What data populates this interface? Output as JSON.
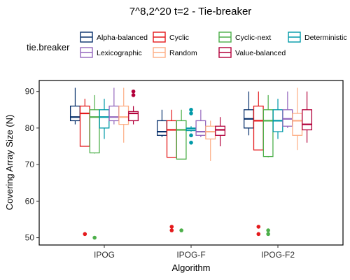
{
  "chart_data": {
    "type": "boxplot",
    "title": "7^8,2^20 t=2 - Tie-breaker",
    "xlabel": "Algorithm",
    "ylabel": "Covering Array Size (N)",
    "ylim": [
      48,
      93
    ],
    "yticks": [
      50,
      60,
      70,
      80,
      90
    ],
    "grid": false,
    "legend": {
      "title": "tie.breaker",
      "position": "top",
      "entries": [
        {
          "name": "Alpha-balanced",
          "color": "#08306B"
        },
        {
          "name": "Cyclic",
          "color": "#E41A1C"
        },
        {
          "name": "Cyclic-next",
          "color": "#4DAF4A"
        },
        {
          "name": "Deterministic",
          "color": "#0099A8"
        },
        {
          "name": "Lexicographic",
          "color": "#9467BD"
        },
        {
          "name": "Random",
          "color": "#FDAE85"
        },
        {
          "name": "Value-balanced",
          "color": "#B2003A"
        }
      ]
    },
    "categories": [
      "IPOG",
      "IPOG-F",
      "IPOG-F2"
    ],
    "boxes": [
      [
        {
          "whisker_low": 81,
          "q1": 82,
          "median": 83,
          "q3": 86,
          "whisker_high": 91,
          "outliers": []
        },
        {
          "whisker_low": 75,
          "q1": 75,
          "median": 84,
          "q3": 86,
          "whisker_high": 88,
          "outliers": [
            51
          ]
        },
        {
          "whisker_low": 73,
          "q1": 73.2,
          "median": 83,
          "q3": 85,
          "whisker_high": 89,
          "outliers": [
            50
          ]
        },
        {
          "whisker_low": 77,
          "q1": 80,
          "median": 83,
          "q3": 85,
          "whisker_high": 88,
          "outliers": []
        },
        {
          "whisker_low": 81,
          "q1": 82,
          "median": 83,
          "q3": 86,
          "whisker_high": 91,
          "outliers": []
        },
        {
          "whisker_low": 76,
          "q1": 81,
          "median": 83,
          "q3": 86,
          "whisker_high": 91,
          "outliers": []
        },
        {
          "whisker_low": 81,
          "q1": 82,
          "median": 84,
          "q3": 84.5,
          "whisker_high": 86,
          "outliers": [
            89,
            90
          ]
        }
      ],
      [
        {
          "whisker_low": 77.5,
          "q1": 78,
          "median": 79,
          "q3": 82,
          "whisker_high": 85,
          "outliers": []
        },
        {
          "whisker_low": 72,
          "q1": 72,
          "median": 79.5,
          "q3": 82,
          "whisker_high": 85,
          "outliers": [
            52,
            53
          ]
        },
        {
          "whisker_low": 71.5,
          "q1": 71.5,
          "median": 79.5,
          "q3": 82,
          "whisker_high": 85,
          "outliers": [
            52
          ]
        },
        {
          "whisker_low": 79,
          "q1": 79.3,
          "median": 79.8,
          "q3": 80,
          "whisker_high": 80.5,
          "outliers": [
            76,
            78,
            84,
            85
          ]
        },
        {
          "whisker_low": 77.5,
          "q1": 78,
          "median": 79,
          "q3": 82,
          "whisker_high": 85,
          "outliers": []
        },
        {
          "whisker_low": 71,
          "q1": 77,
          "median": 79,
          "q3": 80.5,
          "whisker_high": 82,
          "outliers": []
        },
        {
          "whisker_low": 75,
          "q1": 78,
          "median": 79.5,
          "q3": 80.5,
          "whisker_high": 83,
          "outliers": []
        }
      ],
      [
        {
          "whisker_low": 78,
          "q1": 80,
          "median": 82.5,
          "q3": 85,
          "whisker_high": 90,
          "outliers": []
        },
        {
          "whisker_low": 74,
          "q1": 74,
          "median": 82,
          "q3": 86,
          "whisker_high": 90,
          "outliers": [
            51,
            53
          ]
        },
        {
          "whisker_low": 72,
          "q1": 72.2,
          "median": 82,
          "q3": 85,
          "whisker_high": 89,
          "outliers": [
            51,
            52
          ]
        },
        {
          "whisker_low": 77,
          "q1": 79,
          "median": 82,
          "q3": 85,
          "whisker_high": 88,
          "outliers": []
        },
        {
          "whisker_low": 80,
          "q1": 80.5,
          "median": 82.5,
          "q3": 85,
          "whisker_high": 90,
          "outliers": []
        },
        {
          "whisker_low": 74,
          "q1": 78,
          "median": 82,
          "q3": 84,
          "whisker_high": 91,
          "outliers": []
        },
        {
          "whisker_low": 76,
          "q1": 79.5,
          "median": 81,
          "q3": 85,
          "whisker_high": 90,
          "outliers": []
        }
      ]
    ]
  }
}
